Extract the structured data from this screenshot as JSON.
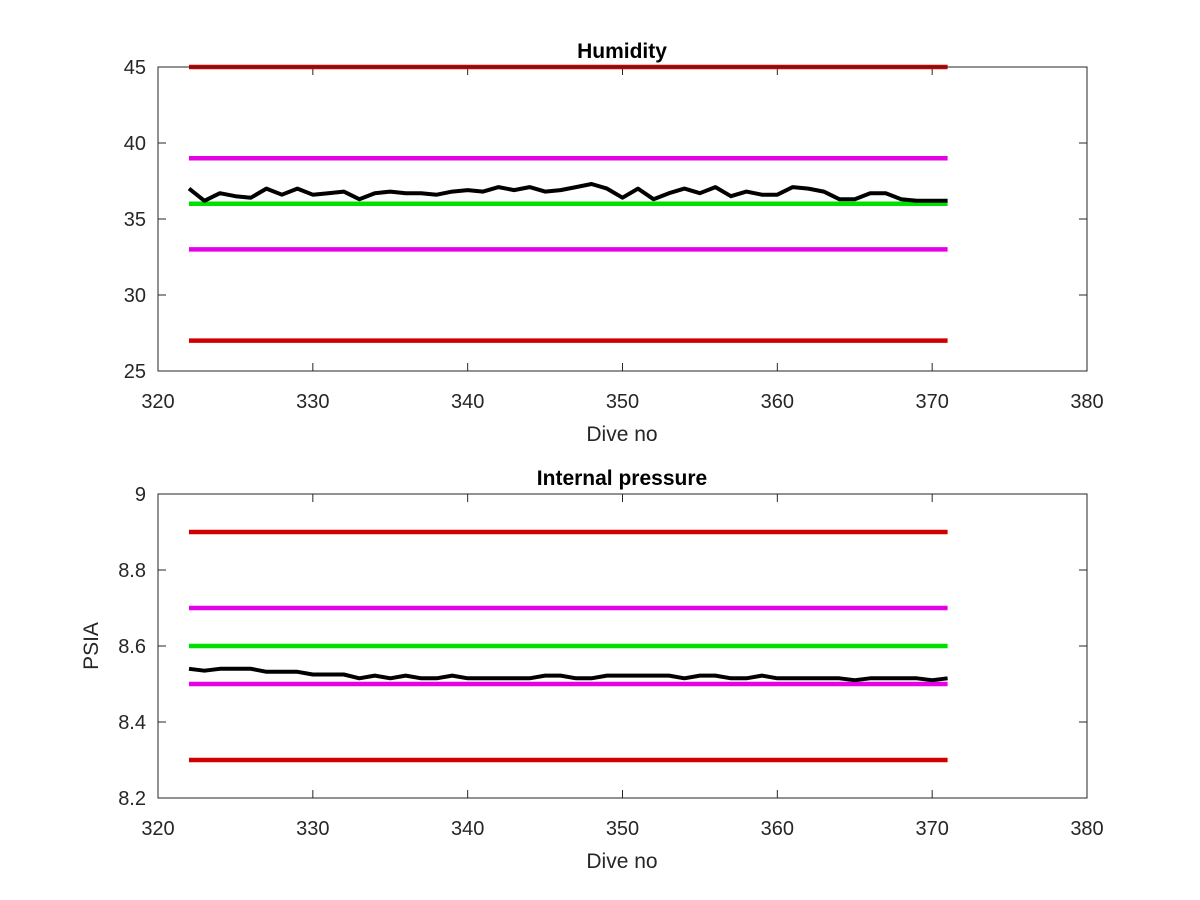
{
  "figure": {
    "background": "#ffffff"
  },
  "chart_data": [
    {
      "type": "line",
      "title": "Humidity",
      "xlabel": "Dive no",
      "ylabel": "",
      "xlim": [
        320,
        380
      ],
      "ylim": [
        25,
        45
      ],
      "xticks": [
        "320",
        "330",
        "340",
        "350",
        "360",
        "370",
        "380"
      ],
      "yticks": [
        "25",
        "30",
        "35",
        "40",
        "45"
      ],
      "grid": false,
      "legend": "none",
      "series": [
        {
          "color": "#d00000",
          "kind": "threshold",
          "x": [
            322,
            371
          ],
          "y": [
            45,
            45
          ]
        },
        {
          "color": "#e600e6",
          "kind": "threshold",
          "x": [
            322,
            371
          ],
          "y": [
            39,
            39
          ]
        },
        {
          "color": "#00e000",
          "kind": "threshold",
          "x": [
            322,
            371
          ],
          "y": [
            36,
            36
          ]
        },
        {
          "color": "#e600e6",
          "kind": "threshold",
          "x": [
            322,
            371
          ],
          "y": [
            33,
            33
          ]
        },
        {
          "color": "#d00000",
          "kind": "threshold",
          "x": [
            322,
            371
          ],
          "y": [
            27,
            27
          ]
        },
        {
          "color": "#000000",
          "kind": "measurement",
          "x": [
            322,
            323,
            324,
            325,
            326,
            327,
            328,
            329,
            330,
            331,
            332,
            333,
            334,
            335,
            336,
            337,
            338,
            339,
            340,
            341,
            342,
            343,
            344,
            345,
            346,
            347,
            348,
            349,
            350,
            351,
            352,
            353,
            354,
            355,
            356,
            357,
            358,
            359,
            360,
            361,
            362,
            363,
            364,
            365,
            366,
            367,
            368,
            369,
            370,
            371
          ],
          "y": [
            37.0,
            36.2,
            36.7,
            36.5,
            36.4,
            37.0,
            36.6,
            37.0,
            36.6,
            36.7,
            36.8,
            36.3,
            36.7,
            36.8,
            36.7,
            36.7,
            36.6,
            36.8,
            36.9,
            36.8,
            37.1,
            36.9,
            37.1,
            36.8,
            36.9,
            37.1,
            37.3,
            37.0,
            36.4,
            37.0,
            36.3,
            36.7,
            37.0,
            36.7,
            37.1,
            36.5,
            36.8,
            36.6,
            36.6,
            37.1,
            37.0,
            36.8,
            36.3,
            36.3,
            36.7,
            36.7,
            36.3,
            36.2,
            36.2,
            36.2
          ]
        }
      ]
    },
    {
      "type": "line",
      "title": "Internal pressure",
      "xlabel": "Dive no",
      "ylabel": "PSIA",
      "xlim": [
        320,
        380
      ],
      "ylim": [
        8.2,
        9.0
      ],
      "xticks": [
        "320",
        "330",
        "340",
        "350",
        "360",
        "370",
        "380"
      ],
      "yticks": [
        "8.2",
        "8.4",
        "8.6",
        "8.8",
        "9"
      ],
      "grid": false,
      "legend": "none",
      "series": [
        {
          "color": "#d00000",
          "kind": "threshold",
          "x": [
            322,
            371
          ],
          "y": [
            8.9,
            8.9
          ]
        },
        {
          "color": "#e600e6",
          "kind": "threshold",
          "x": [
            322,
            371
          ],
          "y": [
            8.7,
            8.7
          ]
        },
        {
          "color": "#00e000",
          "kind": "threshold",
          "x": [
            322,
            371
          ],
          "y": [
            8.6,
            8.6
          ]
        },
        {
          "color": "#e600e6",
          "kind": "threshold",
          "x": [
            322,
            371
          ],
          "y": [
            8.5,
            8.5
          ]
        },
        {
          "color": "#d00000",
          "kind": "threshold",
          "x": [
            322,
            371
          ],
          "y": [
            8.3,
            8.3
          ]
        },
        {
          "color": "#000000",
          "kind": "measurement",
          "x": [
            322,
            323,
            324,
            325,
            326,
            327,
            328,
            329,
            330,
            331,
            332,
            333,
            334,
            335,
            336,
            337,
            338,
            339,
            340,
            341,
            342,
            343,
            344,
            345,
            346,
            347,
            348,
            349,
            350,
            351,
            352,
            353,
            354,
            355,
            356,
            357,
            358,
            359,
            360,
            361,
            362,
            363,
            364,
            365,
            366,
            367,
            368,
            369,
            370,
            371
          ],
          "y": [
            8.54,
            8.535,
            8.54,
            8.54,
            8.54,
            8.532,
            8.532,
            8.532,
            8.525,
            8.525,
            8.525,
            8.515,
            8.522,
            8.515,
            8.522,
            8.515,
            8.515,
            8.522,
            8.515,
            8.515,
            8.515,
            8.515,
            8.515,
            8.522,
            8.522,
            8.515,
            8.515,
            8.522,
            8.522,
            8.522,
            8.522,
            8.522,
            8.515,
            8.522,
            8.522,
            8.515,
            8.515,
            8.522,
            8.515,
            8.515,
            8.515,
            8.515,
            8.515,
            8.51,
            8.515,
            8.515,
            8.515,
            8.515,
            8.51,
            8.515
          ]
        }
      ]
    }
  ]
}
